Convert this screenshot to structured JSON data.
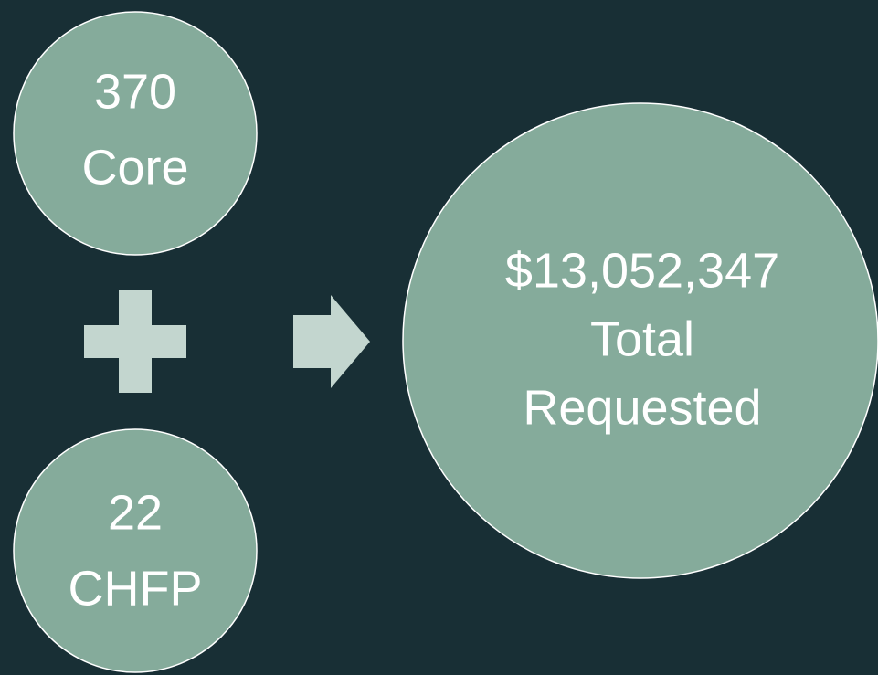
{
  "circles": [
    {
      "lines": [
        "370",
        "Core"
      ]
    },
    {
      "lines": [
        "22",
        "CHFP"
      ]
    },
    {
      "lines": [
        "$13,052,347",
        "Total",
        "Requested"
      ]
    }
  ]
}
